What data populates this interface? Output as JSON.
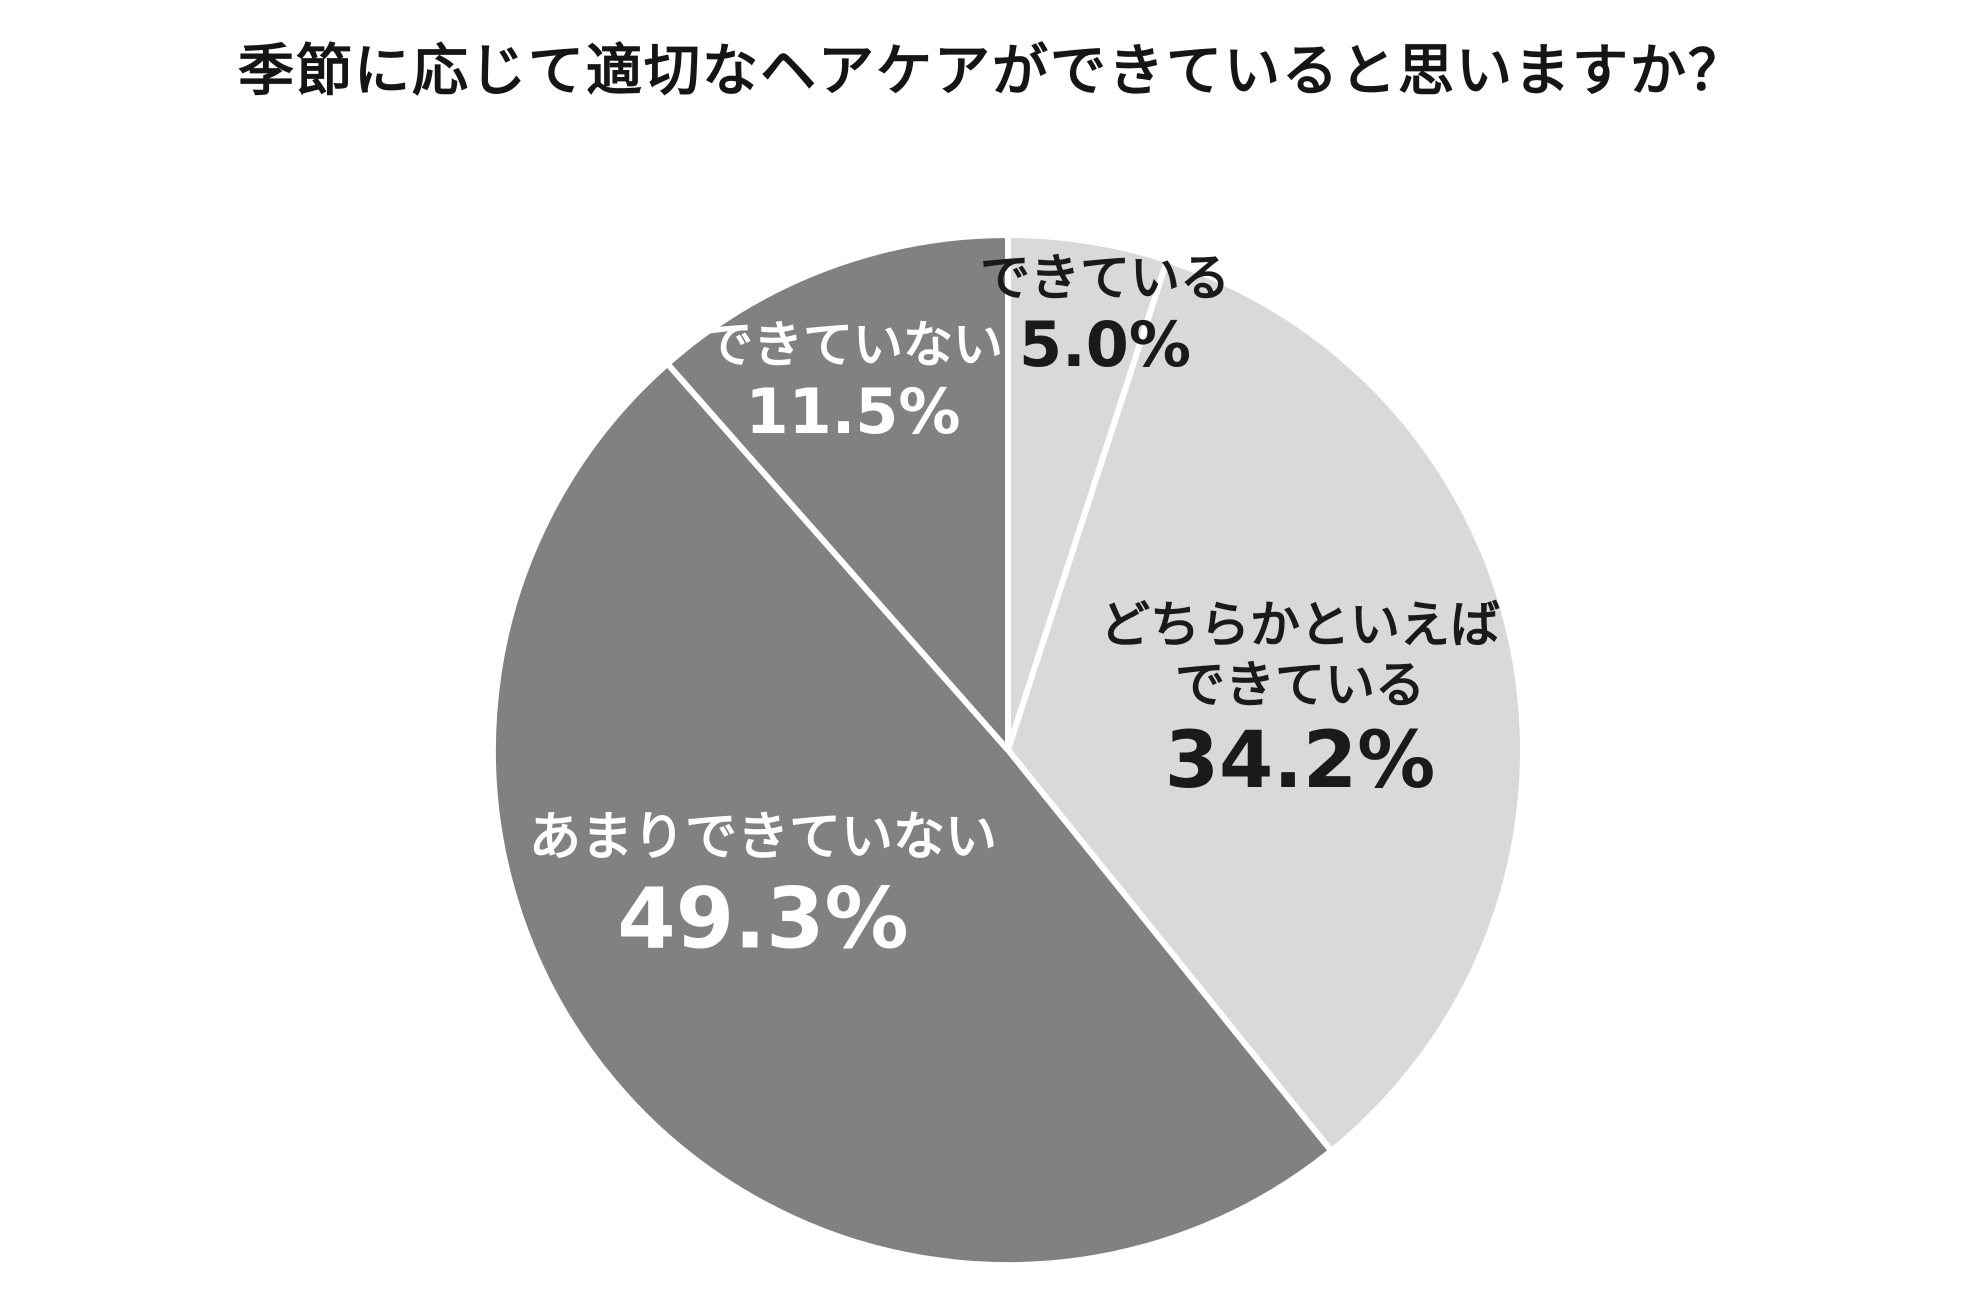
{
  "chart_data": {
    "type": "pie",
    "title": "季節に応じて適切なヘアケアができていると思いますか？",
    "direction": "clockwise",
    "start_angle": "12-o'clock",
    "total": 100,
    "legend_position": "none",
    "labels_on_chart": true,
    "background": "#ffffff",
    "slice_border_color": "#ffffff",
    "slices": [
      {
        "label": "できている",
        "label_lines": [
          "できている"
        ],
        "value": 5.0,
        "display": "5.0%",
        "color": "#d9d9d9",
        "label_color": "#1a1a1a"
      },
      {
        "label": "どちらかといえばできている",
        "label_lines": [
          "どちらかといえば",
          "できている"
        ],
        "value": 34.2,
        "display": "34.2%",
        "color": "#d9d9d9",
        "label_color": "#1a1a1a"
      },
      {
        "label": "あまりできていない",
        "label_lines": [
          "あまりできていない"
        ],
        "value": 49.3,
        "display": "49.3%",
        "color": "#818181",
        "label_color": "#ffffff"
      },
      {
        "label": "できていない",
        "label_lines": [
          "できていない"
        ],
        "value": 11.5,
        "display": "11.5%",
        "color": "#818181",
        "label_color": "#ffffff"
      }
    ]
  }
}
